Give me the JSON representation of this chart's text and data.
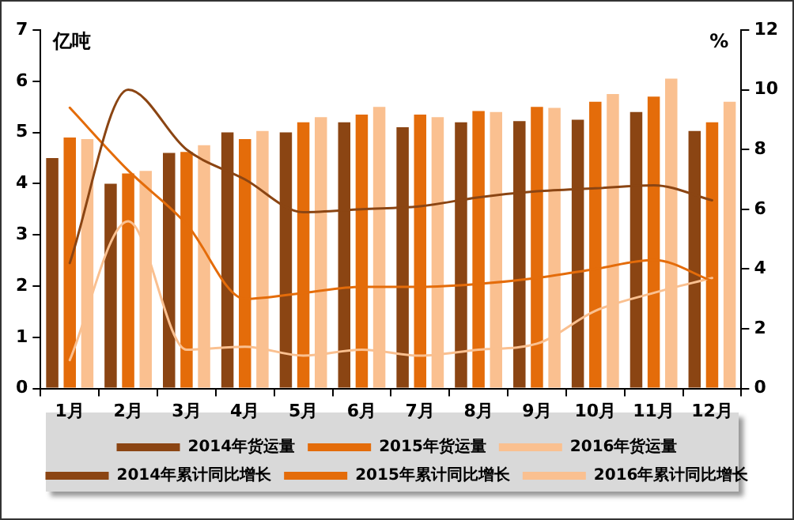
{
  "chart_data": {
    "type": "bar",
    "ylabel": "亿吨",
    "y2label": "%",
    "categories": [
      "1月",
      "2月",
      "3月",
      "4月",
      "5月",
      "6月",
      "7月",
      "8月",
      "9月",
      "10月",
      "11月",
      "12月"
    ],
    "series": [
      {
        "name": "2014年货运量",
        "color": "#8b4513",
        "values": [
          4.5,
          4.0,
          4.6,
          5.0,
          5.0,
          5.2,
          5.1,
          5.2,
          5.22,
          5.25,
          5.4,
          5.03
        ]
      },
      {
        "name": "2015年货运量",
        "color": "#e46c0a",
        "values": [
          4.9,
          4.2,
          4.62,
          4.87,
          5.2,
          5.35,
          5.35,
          5.42,
          5.5,
          5.6,
          5.7,
          5.2
        ]
      },
      {
        "name": "2016年货运量",
        "color": "#fac090",
        "values": [
          4.87,
          4.25,
          4.75,
          5.03,
          5.3,
          5.5,
          5.3,
          5.4,
          5.48,
          5.75,
          6.05,
          5.6
        ]
      },
      {
        "name": "2014年累计同比增长",
        "type": "line",
        "axis": "y2",
        "color": "#8b4513",
        "values": [
          4.2,
          10.0,
          8.0,
          7.0,
          5.9,
          6.0,
          6.1,
          6.4,
          6.6,
          6.7,
          6.8,
          6.3
        ]
      },
      {
        "name": "2015年累计同比增长",
        "type": "line",
        "axis": "y2",
        "color": "#e46c0a",
        "values": [
          9.4,
          7.3,
          5.5,
          3.0,
          3.2,
          3.4,
          3.4,
          3.5,
          3.7,
          4.0,
          4.3,
          3.6
        ]
      },
      {
        "name": "2016年累计同比增长",
        "type": "line",
        "axis": "y2",
        "color": "#fac090",
        "values": [
          0.95,
          5.6,
          1.3,
          1.4,
          1.1,
          1.3,
          1.1,
          1.3,
          1.5,
          2.6,
          3.2,
          3.7
        ]
      }
    ],
    "ylim": [
      0,
      7
    ],
    "yticks": [
      0,
      1,
      2,
      3,
      4,
      5,
      6,
      7
    ],
    "y2lim": [
      0,
      12
    ],
    "y2ticks": [
      0,
      2,
      4,
      6,
      8,
      10,
      12
    ],
    "grid": false,
    "legend": "bottom",
    "marker": "none",
    "line_style": "solid"
  }
}
